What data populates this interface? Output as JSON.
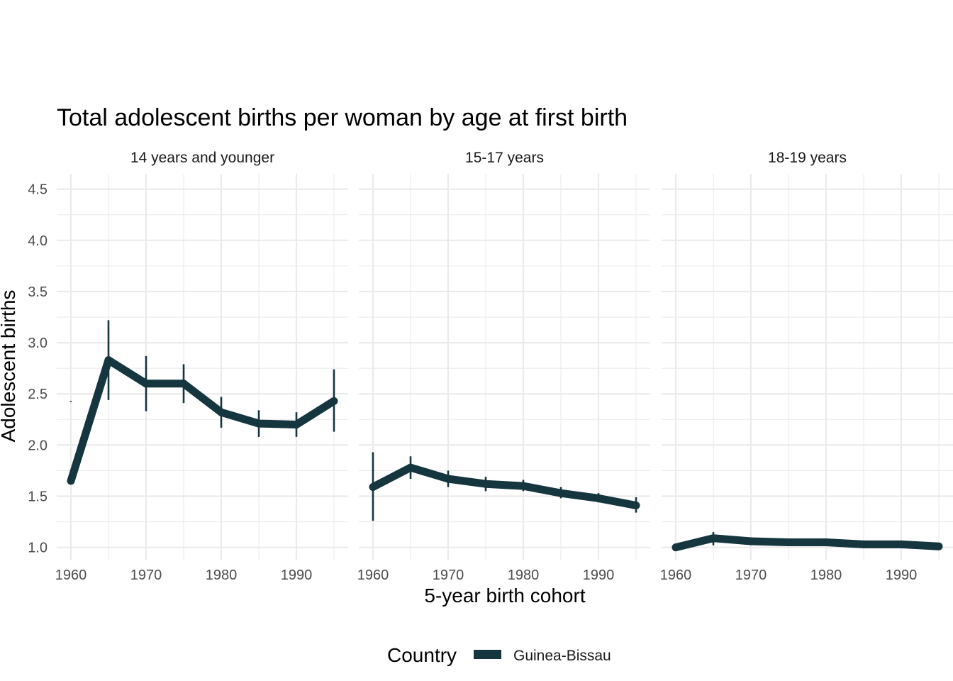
{
  "chart_data": {
    "type": "line",
    "title": "Total adolescent births per woman by age at first birth",
    "xlabel": "5-year birth cohort",
    "ylabel": "Adolescent births",
    "xlim": [
      1960,
      1995
    ],
    "ylim": [
      0.88,
      4.65
    ],
    "x_ticks": [
      1960,
      1970,
      1980,
      1990
    ],
    "x_tick_labels": [
      "1960",
      "1970",
      "1980",
      "1990"
    ],
    "x_minor_ticks": [
      1965,
      1975,
      1985,
      1995
    ],
    "y_ticks": [
      1.0,
      1.5,
      2.0,
      2.5,
      3.0,
      3.5,
      4.0,
      4.5
    ],
    "y_tick_labels": [
      "1.0",
      "1.5",
      "2.0",
      "2.5",
      "3.0",
      "3.5",
      "4.0",
      "4.5"
    ],
    "y_minor_ticks": [
      1.25,
      1.75,
      2.25,
      2.75,
      3.25,
      3.75,
      4.25
    ],
    "grid": true,
    "legend": {
      "title": "Country",
      "position": "bottom",
      "entries": [
        "Guinea-Bissau"
      ]
    },
    "series_color": "#15353f",
    "panels": [
      {
        "label": "14 years and younger",
        "series": [
          {
            "name": "Guinea-Bissau",
            "x": [
              1960,
              1965,
              1970,
              1975,
              1980,
              1985,
              1990,
              1995
            ],
            "values": [
              1.65,
              2.83,
              2.6,
              2.6,
              2.32,
              2.21,
              2.2,
              2.43
            ],
            "error_low": [
              2.42,
              2.44,
              2.33,
              2.41,
              2.17,
              2.08,
              2.08,
              2.13
            ],
            "error_high": [
              2.43,
              3.22,
              2.87,
              2.79,
              2.47,
              2.34,
              2.32,
              2.74
            ]
          }
        ]
      },
      {
        "label": "15-17 years",
        "series": [
          {
            "name": "Guinea-Bissau",
            "x": [
              1960,
              1965,
              1970,
              1975,
              1980,
              1985,
              1990,
              1995
            ],
            "values": [
              1.59,
              1.78,
              1.67,
              1.62,
              1.6,
              1.53,
              1.48,
              1.41
            ],
            "error_low": [
              1.26,
              1.67,
              1.59,
              1.55,
              1.55,
              1.48,
              1.44,
              1.34
            ],
            "error_high": [
              1.93,
              1.89,
              1.75,
              1.69,
              1.66,
              1.59,
              1.53,
              1.49
            ]
          }
        ]
      },
      {
        "label": "18-19 years",
        "series": [
          {
            "name": "Guinea-Bissau",
            "x": [
              1960,
              1965,
              1970,
              1975,
              1980,
              1985,
              1990,
              1995
            ],
            "values": [
              1.0,
              1.09,
              1.06,
              1.05,
              1.05,
              1.03,
              1.03,
              1.01
            ],
            "error_low": [
              0.99,
              1.02,
              1.03,
              1.02,
              1.03,
              1.01,
              1.01,
              0.99
            ],
            "error_high": [
              1.02,
              1.15,
              1.09,
              1.08,
              1.08,
              1.05,
              1.05,
              1.03
            ]
          }
        ]
      }
    ]
  }
}
